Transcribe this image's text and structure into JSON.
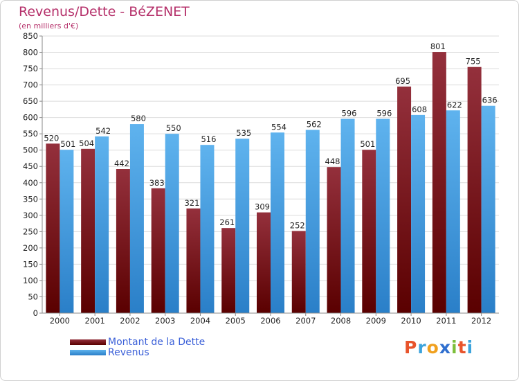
{
  "title": "Revenus/Dette - BéZENET",
  "subtitle": "(en milliers d'€)",
  "logo": {
    "text": "Proxiti",
    "letter_colors": [
      "#e8542c",
      "#3ba3dc",
      "#f0a01e",
      "#2f6fcf",
      "#7cbf3a",
      "#e8542c",
      "#3ba3dc"
    ]
  },
  "colors": {
    "dette_dark": "#5a0000",
    "dette_light": "#94303c",
    "revenus_dark": "#2a7fc8",
    "revenus_light": "#5fb3ee",
    "grid": "#dcdcdc",
    "axis": "#888888"
  },
  "chart_data": {
    "type": "bar",
    "categories": [
      "2000",
      "2001",
      "2002",
      "2003",
      "2004",
      "2005",
      "2006",
      "2007",
      "2008",
      "2009",
      "2010",
      "2011",
      "2012"
    ],
    "series": [
      {
        "name": "Montant de la Dette",
        "values": [
          520,
          504,
          442,
          383,
          321,
          261,
          309,
          252,
          448,
          501,
          695,
          801,
          755
        ]
      },
      {
        "name": "Revenus",
        "values": [
          501,
          542,
          580,
          550,
          516,
          535,
          554,
          562,
          596,
          596,
          608,
          622,
          636
        ]
      }
    ],
    "title": "Revenus/Dette - BéZENET",
    "subtitle": "(en milliers d'€)",
    "ylim": [
      0,
      850
    ],
    "yticks": [
      0,
      50,
      100,
      150,
      200,
      250,
      300,
      350,
      400,
      450,
      500,
      550,
      600,
      650,
      700,
      750,
      800,
      850
    ],
    "grid": true,
    "legend": "bottom-left"
  }
}
